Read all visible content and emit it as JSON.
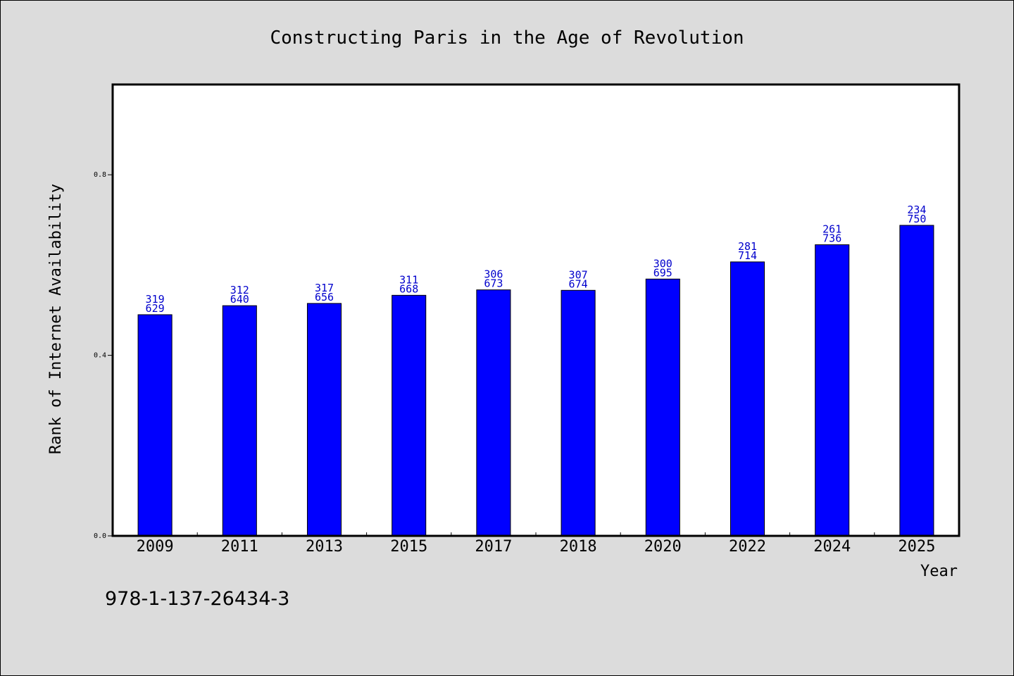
{
  "chart_data": {
    "type": "bar",
    "title": "Constructing Paris in the Age of Revolution",
    "xlabel": "Year",
    "ylabel": "Rank of Internet Availability",
    "categories": [
      "2009",
      "2011",
      "2013",
      "2015",
      "2017",
      "2018",
      "2020",
      "2022",
      "2024",
      "2025"
    ],
    "values": [
      0.49,
      0.51,
      0.515,
      0.533,
      0.545,
      0.544,
      0.569,
      0.607,
      0.645,
      0.688
    ],
    "data_labels": [
      [
        "319",
        "629"
      ],
      [
        "312",
        "640"
      ],
      [
        "317",
        "656"
      ],
      [
        "311",
        "668"
      ],
      [
        "306",
        "673"
      ],
      [
        "307",
        "674"
      ],
      [
        "300",
        "695"
      ],
      [
        "281",
        "714"
      ],
      [
        "261",
        "736"
      ],
      [
        "234",
        "750"
      ]
    ],
    "ylim": [
      0,
      1.0
    ],
    "yticks": [
      0.0,
      0.4,
      0.8
    ],
    "ytick_labels": [
      "0.0",
      "0.4",
      "0.8"
    ],
    "grid": false,
    "bar_color": "#0000ff",
    "label_color": "#0000cc",
    "background_color": "#dcdcdc"
  },
  "footer": {
    "isbn": "978-1-137-26434-3"
  }
}
